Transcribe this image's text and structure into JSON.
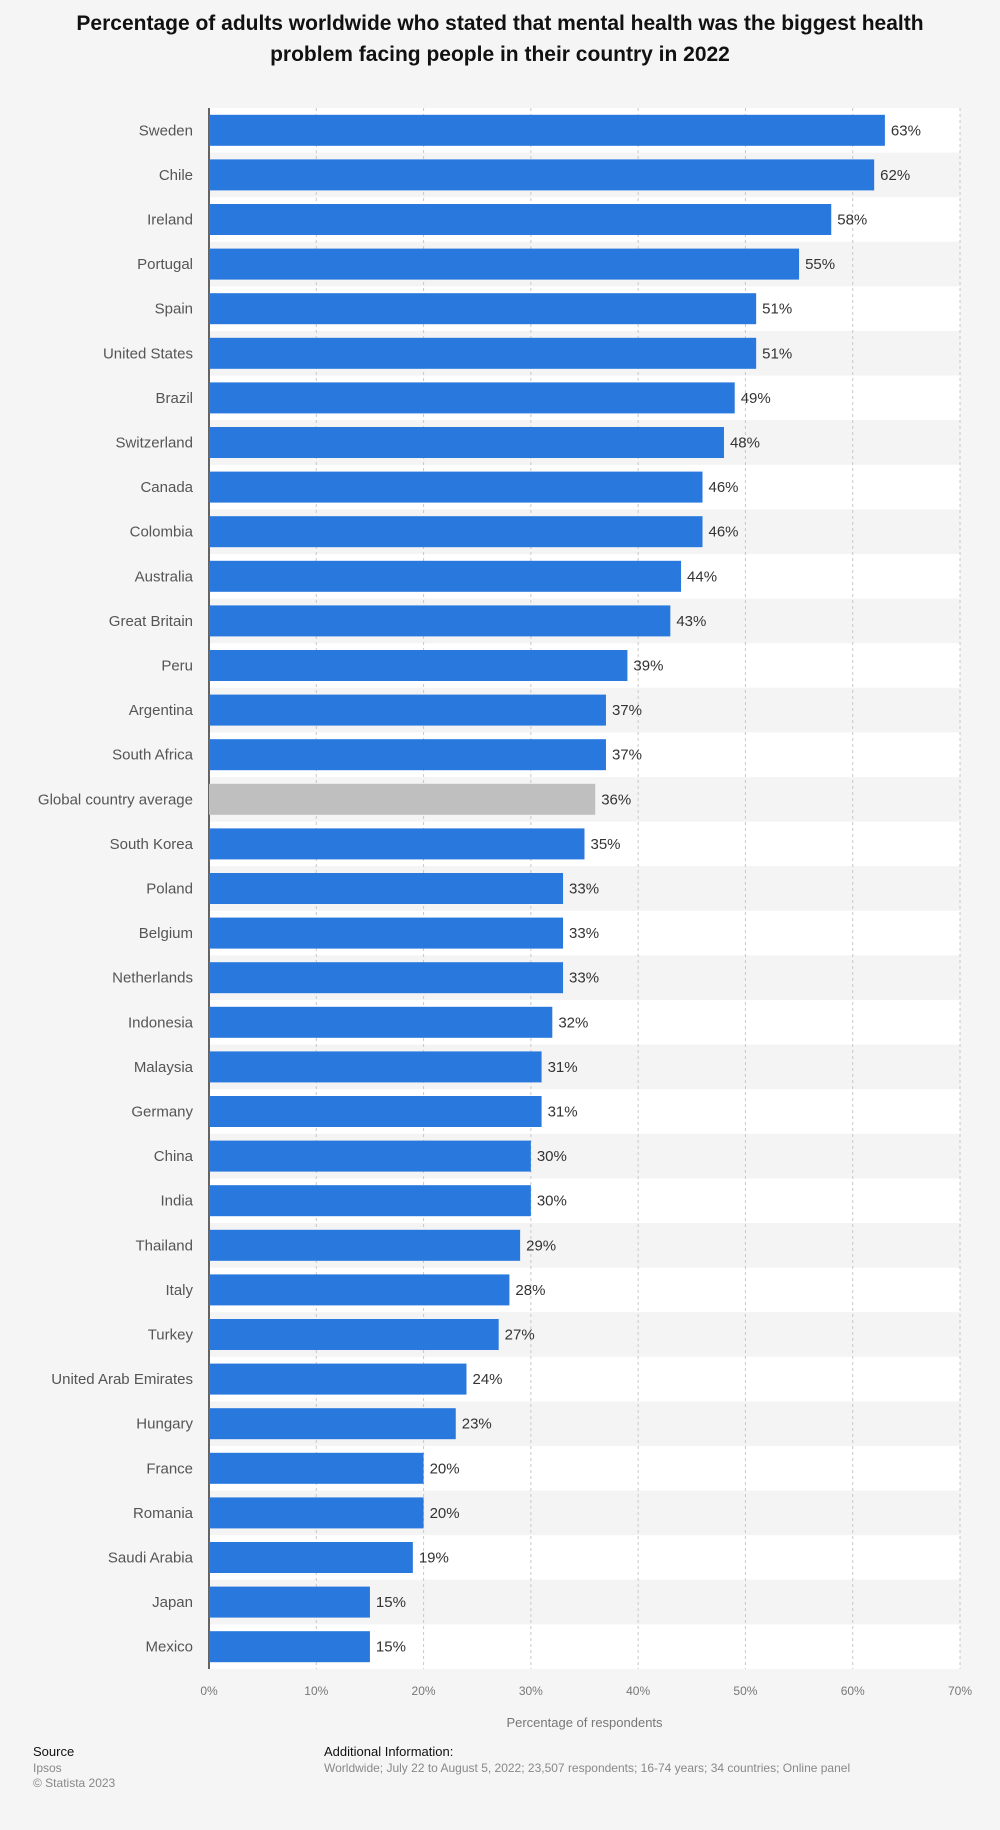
{
  "chart_data": {
    "type": "bar",
    "orientation": "horizontal",
    "title": "Percentage of adults worldwide who stated that mental health was the biggest health problem facing people in their country in 2022",
    "xlabel": "Percentage of respondents",
    "ylabel": "",
    "xlim": [
      0,
      70
    ],
    "xticks": [
      "0%",
      "10%",
      "20%",
      "30%",
      "40%",
      "50%",
      "60%",
      "70%"
    ],
    "value_suffix": "%",
    "grid": true,
    "colors": {
      "bar": "#2878de",
      "highlight": "#bfbfbf"
    },
    "highlight_category": "Global country average",
    "categories": [
      "Sweden",
      "Chile",
      "Ireland",
      "Portugal",
      "Spain",
      "United States",
      "Brazil",
      "Switzerland",
      "Canada",
      "Colombia",
      "Australia",
      "Great Britain",
      "Peru",
      "Argentina",
      "South Africa",
      "Global country average",
      "South Korea",
      "Poland",
      "Belgium",
      "Netherlands",
      "Indonesia",
      "Malaysia",
      "Germany",
      "China",
      "India",
      "Thailand",
      "Italy",
      "Turkey",
      "United Arab Emirates",
      "Hungary",
      "France",
      "Romania",
      "Saudi Arabia",
      "Japan",
      "Mexico"
    ],
    "values": [
      63,
      62,
      58,
      55,
      51,
      51,
      49,
      48,
      46,
      46,
      44,
      43,
      39,
      37,
      37,
      36,
      35,
      33,
      33,
      33,
      32,
      31,
      31,
      30,
      30,
      29,
      28,
      27,
      24,
      23,
      20,
      20,
      19,
      15,
      15
    ]
  },
  "footer": {
    "source_heading": "Source",
    "source_lines": [
      "Ipsos",
      "© Statista 2023"
    ],
    "info_heading": "Additional Information:",
    "info_text": "Worldwide; July 22 to August 5, 2022; 23,507 respondents; 16-74 years; 34 countries; Online panel"
  }
}
